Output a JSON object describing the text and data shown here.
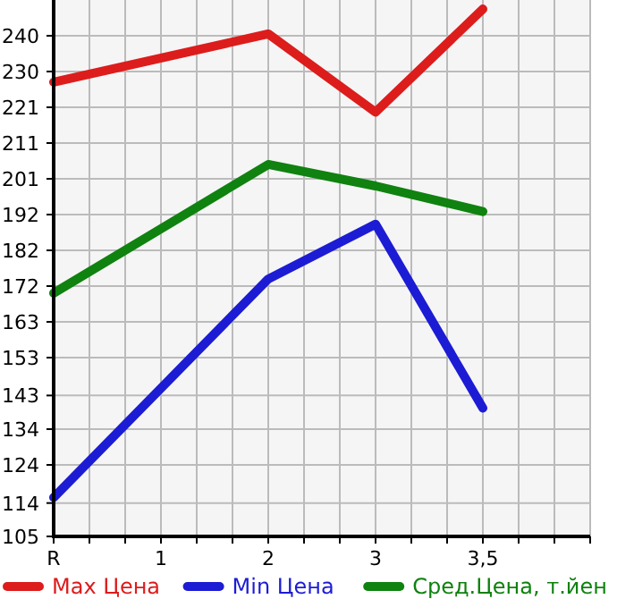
{
  "chart_data": {
    "type": "line",
    "categories": [
      "R",
      "1",
      "2",
      "3",
      "3,5"
    ],
    "series": [
      {
        "name": "Max Цена",
        "color": "#dd1c1c",
        "values": [
          227.5,
          null,
          240.5,
          219.4,
          247.2
        ]
      },
      {
        "name": "Min Цена",
        "color": "#1c1cd4",
        "values": [
          115.5,
          null,
          174.4,
          189.2,
          139.6
        ]
      },
      {
        "name": "Сред.Цена, т.йен",
        "color": "#0f820f",
        "values": [
          170.6,
          null,
          205.3,
          199.5,
          192.6
        ]
      }
    ],
    "ylim": [
      105,
      249.64
    ],
    "yticks": [
      105,
      114,
      {
        "value": 124.29,
        "label": "124"
      },
      {
        "value": 133.93,
        "label": "134"
      },
      143,
      {
        "value": 153.21,
        "label": "153"
      },
      {
        "value": 162.86,
        "label": "163"
      },
      {
        "value": 172.5,
        "label": "172"
      },
      {
        "value": 182.14,
        "label": "182"
      },
      {
        "value": 191.79,
        "label": "192"
      },
      {
        "value": 201.43,
        "label": "201"
      },
      {
        "value": 211.07,
        "label": "211"
      },
      {
        "value": 220.71,
        "label": "221"
      },
      {
        "value": 230.36,
        "label": "230"
      },
      240
    ],
    "grid": true,
    "legend": "bottom",
    "marker": "none",
    "line_style": "solid"
  }
}
